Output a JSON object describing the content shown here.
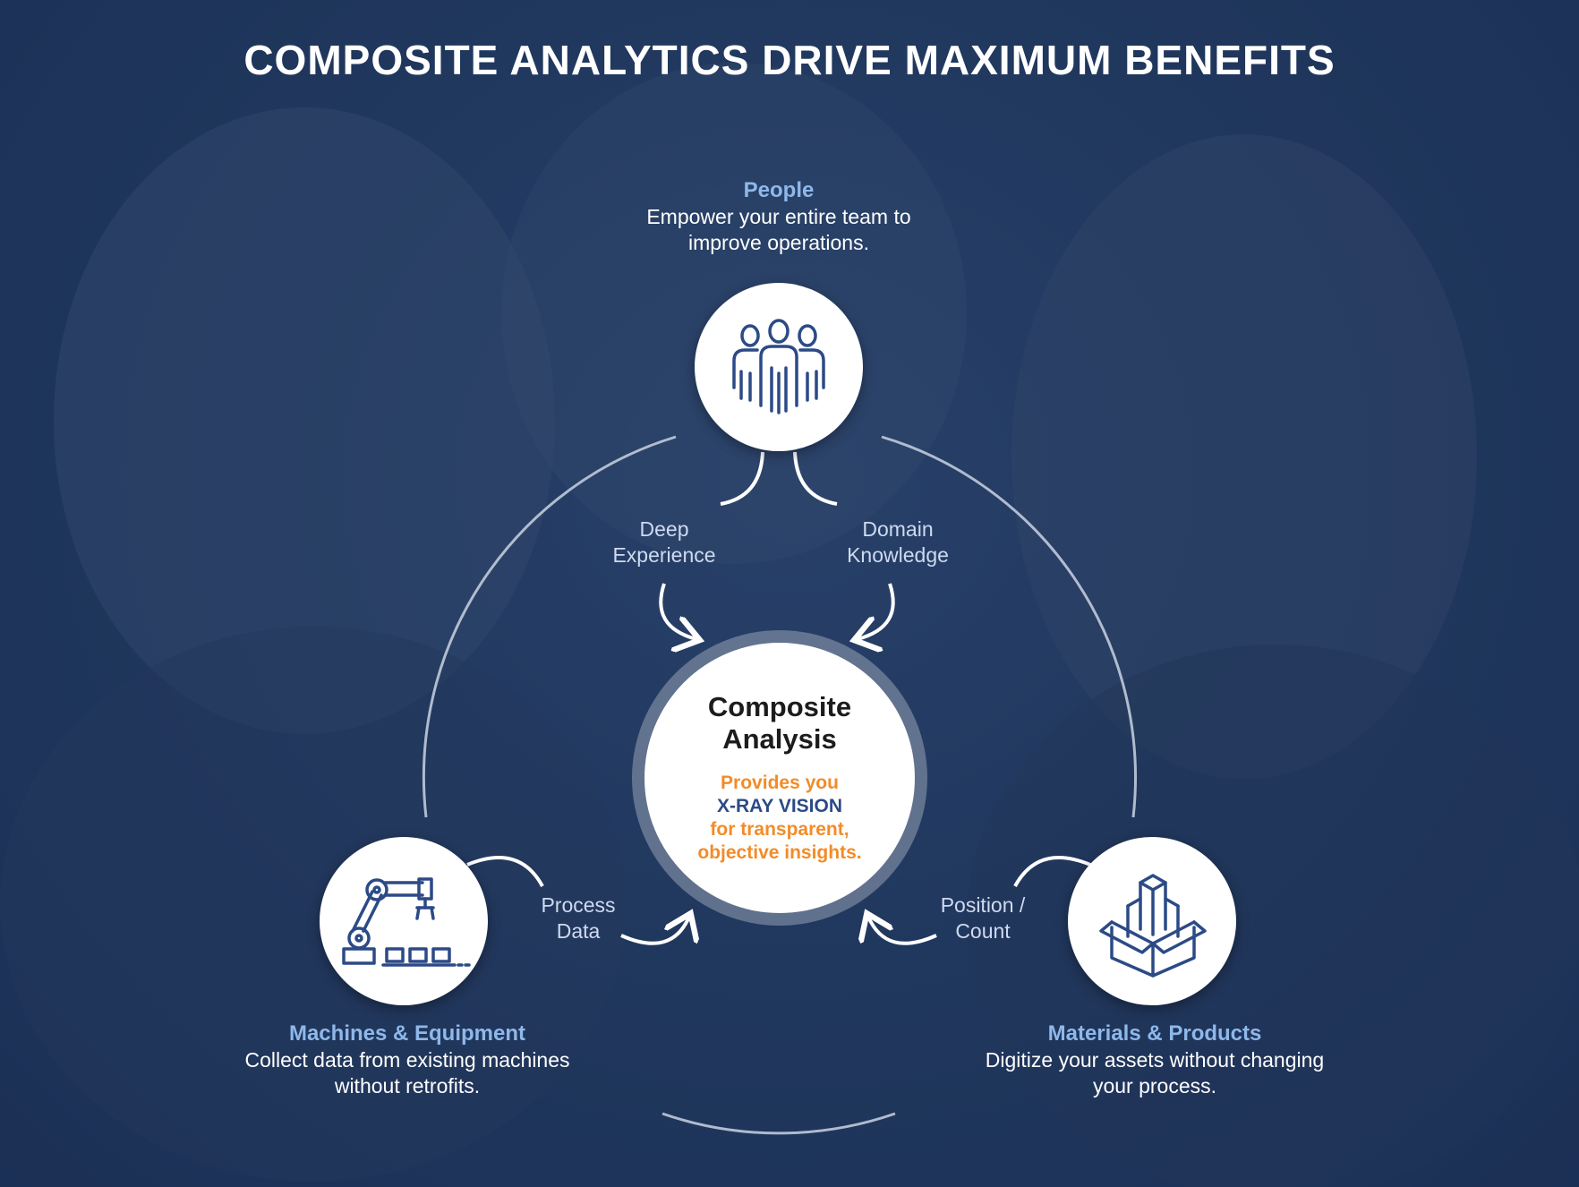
{
  "title": "COMPOSITE ANALYTICS DRIVE MAXIMUM BENEFITS",
  "center": {
    "title_line1": "Composite",
    "title_line2": "Analysis",
    "line1": "Provides you",
    "line2": "X-RAY VISION",
    "line3": "for transparent,",
    "line4": "objective insights."
  },
  "people": {
    "title": "People",
    "desc_line1": "Empower your entire team to",
    "desc_line2": "improve operations.",
    "icon": "team-icon"
  },
  "machines": {
    "title": "Machines & Equipment",
    "desc_line1": "Collect data from existing machines",
    "desc_line2": "without retrofits.",
    "icon": "robot-arm-icon"
  },
  "materials": {
    "title": "Materials & Products",
    "desc_line1": "Digitize your assets without changing",
    "desc_line2": "your process.",
    "icon": "box-icon"
  },
  "flows": {
    "deep_line1": "Deep",
    "deep_line2": "Experience",
    "domain_line1": "Domain",
    "domain_line2": "Knowledge",
    "process_line1": "Process",
    "process_line2": "Data",
    "position_line1": "Position /",
    "position_line2": "Count"
  },
  "colors": {
    "background": "#243d64",
    "accent_blue": "#8fb8ea",
    "accent_orange": "#f28c28",
    "icon_navy": "#2c4a86"
  }
}
